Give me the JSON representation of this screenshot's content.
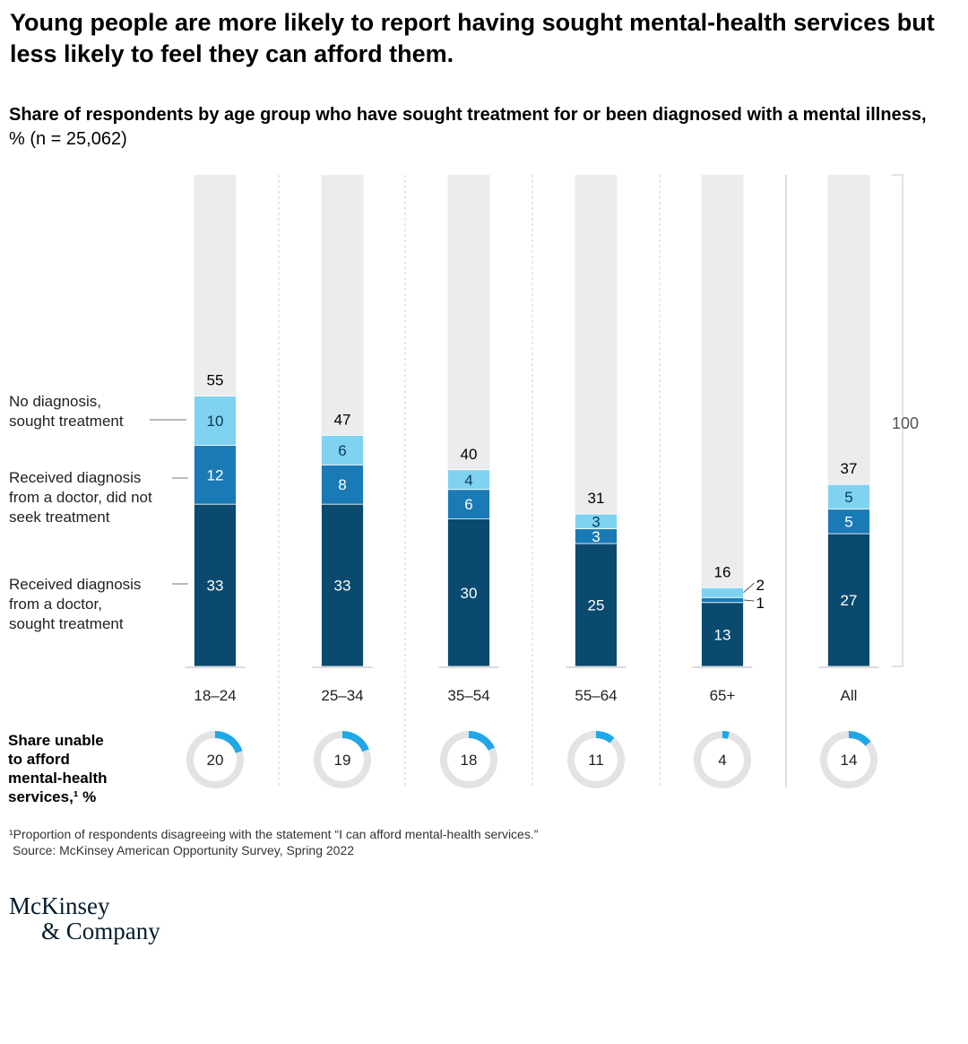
{
  "title": "Young people are more likely to report having sought mental-health services but less likely to feel they can afford them.",
  "subtitle": {
    "bold": "Share of respondents by age group who have sought treatment for or been diagnosed with a mental illness,",
    "rest": " % (n = 25,062)"
  },
  "chart_data": {
    "type": "bar",
    "stacked": true,
    "categories": [
      "18–24",
      "25–34",
      "35–54",
      "55–64",
      "65+",
      "All"
    ],
    "series": [
      {
        "name": "Received diagnosis from a doctor, sought treatment",
        "values": [
          33,
          33,
          30,
          25,
          13,
          27
        ],
        "color": "#0a4a6e"
      },
      {
        "name": "Received diagnosis from a doctor, did not seek treatment",
        "values": [
          12,
          8,
          6,
          3,
          1,
          5
        ],
        "color": "#1a7ab5"
      },
      {
        "name": "No diagnosis, sought treatment",
        "values": [
          10,
          6,
          4,
          3,
          2,
          5
        ],
        "color": "#7fd2f0"
      }
    ],
    "totals": [
      55,
      47,
      40,
      31,
      16,
      37
    ],
    "ylim": [
      0,
      100
    ],
    "scale_label": "100",
    "background_color": "#ececec",
    "donut": {
      "label": "Share unable to afford mental-health services,¹ %",
      "values": [
        20,
        19,
        18,
        11,
        4,
        14
      ],
      "color": "#21a7e6",
      "track_color": "#e3e3e3"
    }
  },
  "legend_labels": {
    "no_diagnosis": [
      "No diagnosis,",
      "sought treatment"
    ],
    "diag_no_treat": [
      "Received diagnosis",
      "from a doctor, did not",
      "seek treatment"
    ],
    "diag_treat": [
      "Received diagnosis",
      "from a doctor,",
      "sought treatment"
    ]
  },
  "donut_label_lines": [
    "Share unable",
    "to afford",
    "mental-health",
    "services,¹ %"
  ],
  "footnote": {
    "note": "¹Proportion of respondents disagreeing with the statement “I can afford mental-health services.”",
    "source": "Source: McKinsey American Opportunity Survey, Spring 2022"
  },
  "logo": {
    "line1": "McKinsey",
    "line2": "& Company"
  }
}
